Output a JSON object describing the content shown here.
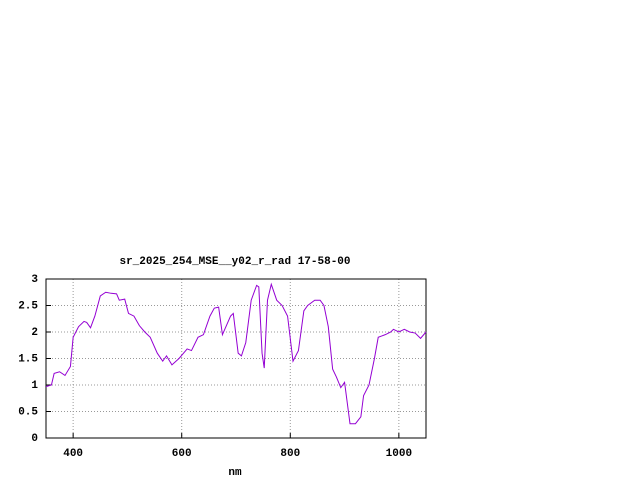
{
  "chart_data": {
    "type": "line",
    "title": "sr_2025_254_MSE__y02_r_rad 17-58-00",
    "x_label": "nm",
    "x": [
      350,
      360,
      365,
      375,
      385,
      395,
      400,
      410,
      420,
      425,
      432,
      440,
      450,
      460,
      470,
      480,
      485,
      495,
      502,
      512,
      522,
      532,
      542,
      555,
      565,
      572,
      582,
      595,
      610,
      618,
      630,
      640,
      652,
      660,
      668,
      675,
      690,
      695,
      704,
      710,
      718,
      728,
      738,
      742,
      748,
      752,
      758,
      765,
      775,
      785,
      795,
      805,
      815,
      825,
      832,
      845,
      855,
      862,
      870,
      878,
      885,
      893,
      900,
      910,
      920,
      930,
      935,
      945,
      955,
      962,
      975,
      985,
      990,
      1000,
      1010,
      1020,
      1030,
      1040,
      1050
    ],
    "series": [
      {
        "color": "#9400d3",
        "values": [
          0.97,
          1.0,
          1.22,
          1.25,
          1.18,
          1.35,
          1.9,
          2.1,
          2.2,
          2.18,
          2.08,
          2.3,
          2.68,
          2.75,
          2.73,
          2.72,
          2.6,
          2.62,
          2.35,
          2.3,
          2.12,
          2.0,
          1.9,
          1.6,
          1.45,
          1.55,
          1.38,
          1.5,
          1.68,
          1.65,
          1.9,
          1.95,
          2.3,
          2.45,
          2.47,
          1.95,
          2.3,
          2.35,
          1.6,
          1.55,
          1.8,
          2.6,
          2.88,
          2.85,
          1.6,
          1.32,
          2.6,
          2.9,
          2.6,
          2.5,
          2.3,
          1.45,
          1.65,
          2.4,
          2.5,
          2.6,
          2.6,
          2.5,
          2.1,
          1.3,
          1.15,
          0.95,
          1.05,
          0.27,
          0.27,
          0.4,
          0.8,
          1.0,
          1.5,
          1.9,
          1.95,
          2.0,
          2.05,
          2.0,
          2.05,
          2.0,
          1.98,
          1.88,
          2.0
        ]
      }
    ],
    "xlim": [
      350,
      1050
    ],
    "xticks": [
      400,
      600,
      800,
      1000
    ],
    "ylim": [
      0,
      3
    ],
    "yticks": [
      0,
      0.5,
      1,
      1.5,
      2,
      2.5,
      3
    ],
    "grid": true
  }
}
